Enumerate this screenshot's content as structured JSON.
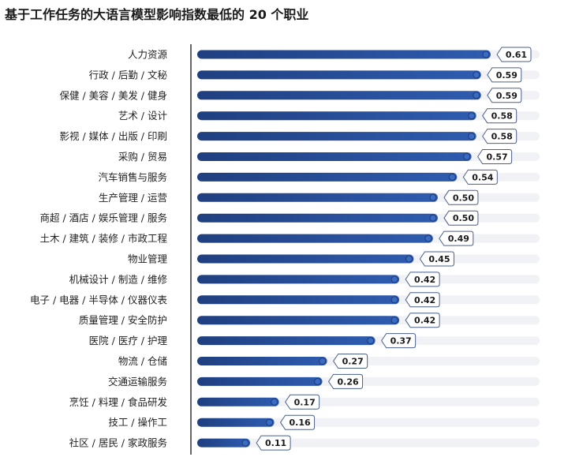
{
  "chart_data": {
    "type": "bar",
    "orientation": "horizontal",
    "title": "基于工作任务的大语言模型影响指数最低的 20 个职业",
    "categories": [
      "人力资源",
      "行政 / 后勤 / 文秘",
      "保健 / 美容 / 美发 / 健身",
      "艺术 / 设计",
      "影视 / 媒体 / 出版 / 印刷",
      "采购 / 贸易",
      "汽车销售与服务",
      "生产管理 / 运营",
      "商超 / 酒店 / 娱乐管理 / 服务",
      "土木 / 建筑 / 装修 / 市政工程",
      "物业管理",
      "机械设计 / 制造 / 维修",
      "电子 / 电器 / 半导体 / 仪器仪表",
      "质量管理 / 安全防护",
      "医院 / 医疗 / 护理",
      "物流 / 仓储",
      "交通运输服务",
      "烹饪 / 料理 / 食品研发",
      "技工 / 操作工",
      "社区 / 居民 / 家政服务"
    ],
    "values": [
      0.61,
      0.59,
      0.59,
      0.58,
      0.58,
      0.57,
      0.54,
      0.5,
      0.5,
      0.49,
      0.45,
      0.42,
      0.42,
      0.42,
      0.37,
      0.27,
      0.26,
      0.17,
      0.16,
      0.11
    ],
    "value_labels": [
      "0.61",
      "0.59",
      "0.59",
      "0.58",
      "0.58",
      "0.57",
      "0.54",
      "0.50",
      "0.50",
      "0.49",
      "0.45",
      "0.42",
      "0.42",
      "0.42",
      "0.37",
      "0.27",
      "0.26",
      "0.17",
      "0.16",
      "0.11"
    ],
    "xlim": [
      0,
      0.61
    ],
    "grid": false,
    "legend": "none",
    "colors": {
      "bar_start": "#1f3f80",
      "bar_end": "#2f5cb0",
      "track": "#f1f2f5",
      "axis": "#333333",
      "label_border": "#4a5f8a"
    }
  }
}
